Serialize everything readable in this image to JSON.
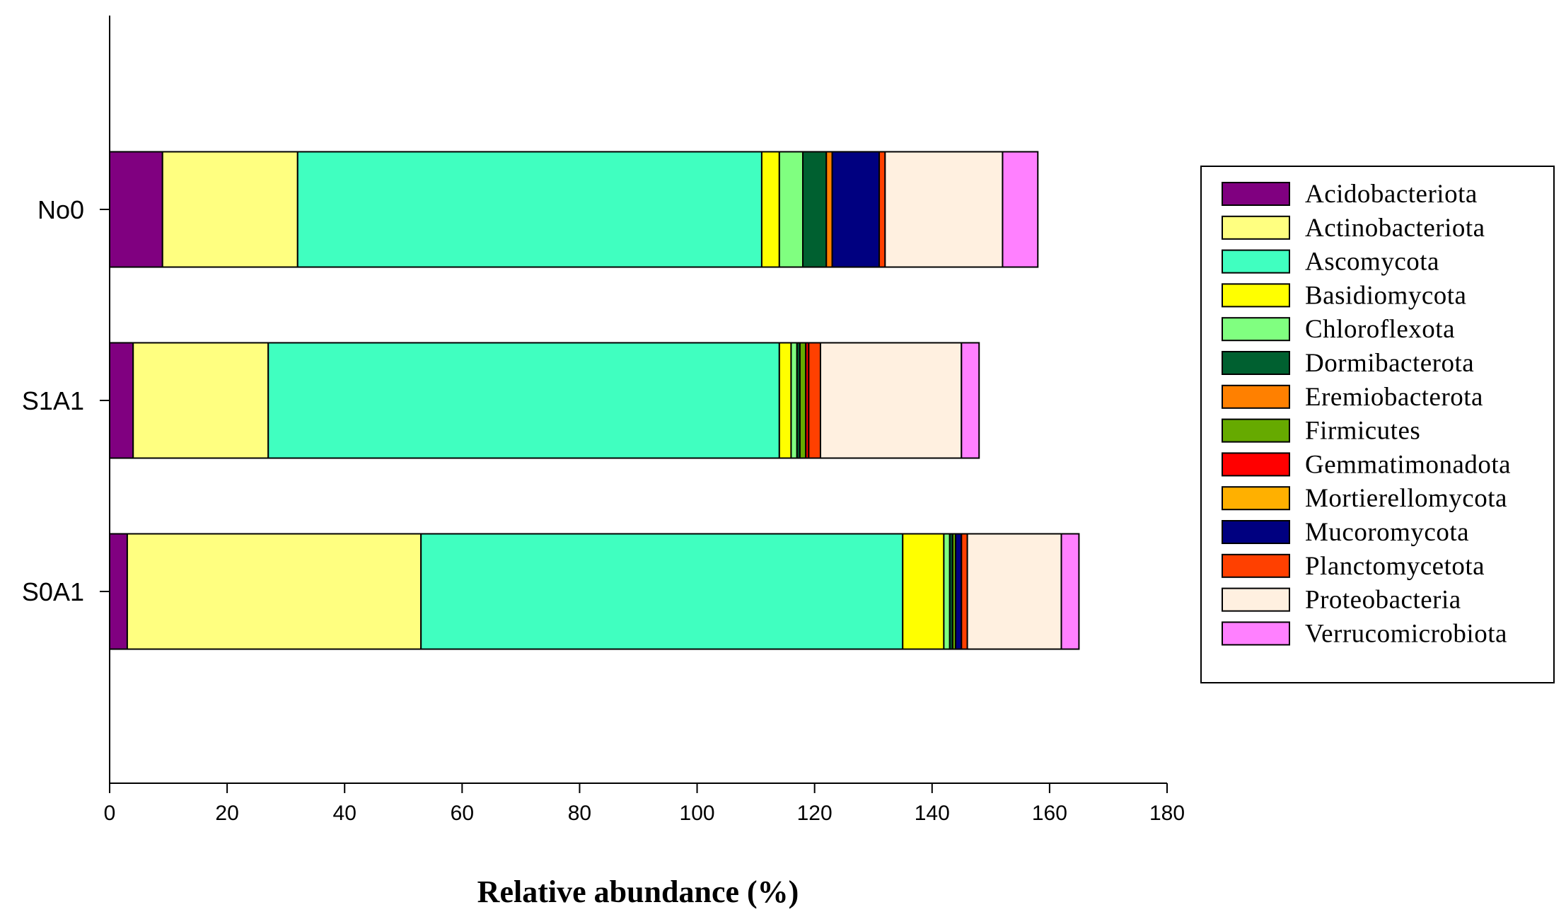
{
  "chart_data": {
    "type": "bar",
    "orientation": "horizontal",
    "stacked": true,
    "title": "",
    "xlabel": "Relative abundance (%)",
    "ylabel": "",
    "xlim": [
      0,
      180
    ],
    "xticks": [
      0,
      20,
      40,
      60,
      80,
      100,
      120,
      140,
      160,
      180
    ],
    "grid": false,
    "legend_position": "right",
    "categories": [
      "No0",
      "S1A1",
      "S0A1"
    ],
    "series": [
      {
        "name": "Acidobacteriota",
        "color": "#800080",
        "values": [
          9,
          4,
          3
        ]
      },
      {
        "name": "Actinobacteriota",
        "color": "#FFFF80",
        "values": [
          23,
          23,
          50
        ]
      },
      {
        "name": "Ascomycota",
        "color": "#40FFC0",
        "values": [
          79,
          87,
          82
        ]
      },
      {
        "name": "Basidiomycota",
        "color": "#FFFF00",
        "values": [
          3,
          2,
          7
        ]
      },
      {
        "name": "Chloroflexota",
        "color": "#80FF80",
        "values": [
          4,
          1,
          1
        ]
      },
      {
        "name": "Dormibacterota",
        "color": "#006030",
        "values": [
          4,
          0.5,
          0.5
        ]
      },
      {
        "name": "Eremiobacterota",
        "color": "#FF8000",
        "values": [
          1,
          0,
          0
        ]
      },
      {
        "name": "Firmicutes",
        "color": "#66AA00",
        "values": [
          0,
          1,
          0.5
        ]
      },
      {
        "name": "Gemmatimonadota",
        "color": "#FF0000",
        "values": [
          0,
          0.5,
          0
        ]
      },
      {
        "name": "Mortierellomycota",
        "color": "#FFB000",
        "values": [
          0,
          0,
          0
        ]
      },
      {
        "name": "Mucoromycota",
        "color": "#000080",
        "values": [
          8,
          0,
          1
        ]
      },
      {
        "name": "Planctomycetota",
        "color": "#FF4000",
        "values": [
          1,
          2,
          1
        ]
      },
      {
        "name": "Proteobacteria",
        "color": "#FFF0E0",
        "values": [
          20,
          24,
          16
        ]
      },
      {
        "name": "Verrucomicrobiota",
        "color": "#FF80FF",
        "values": [
          6,
          3,
          3
        ]
      }
    ]
  }
}
